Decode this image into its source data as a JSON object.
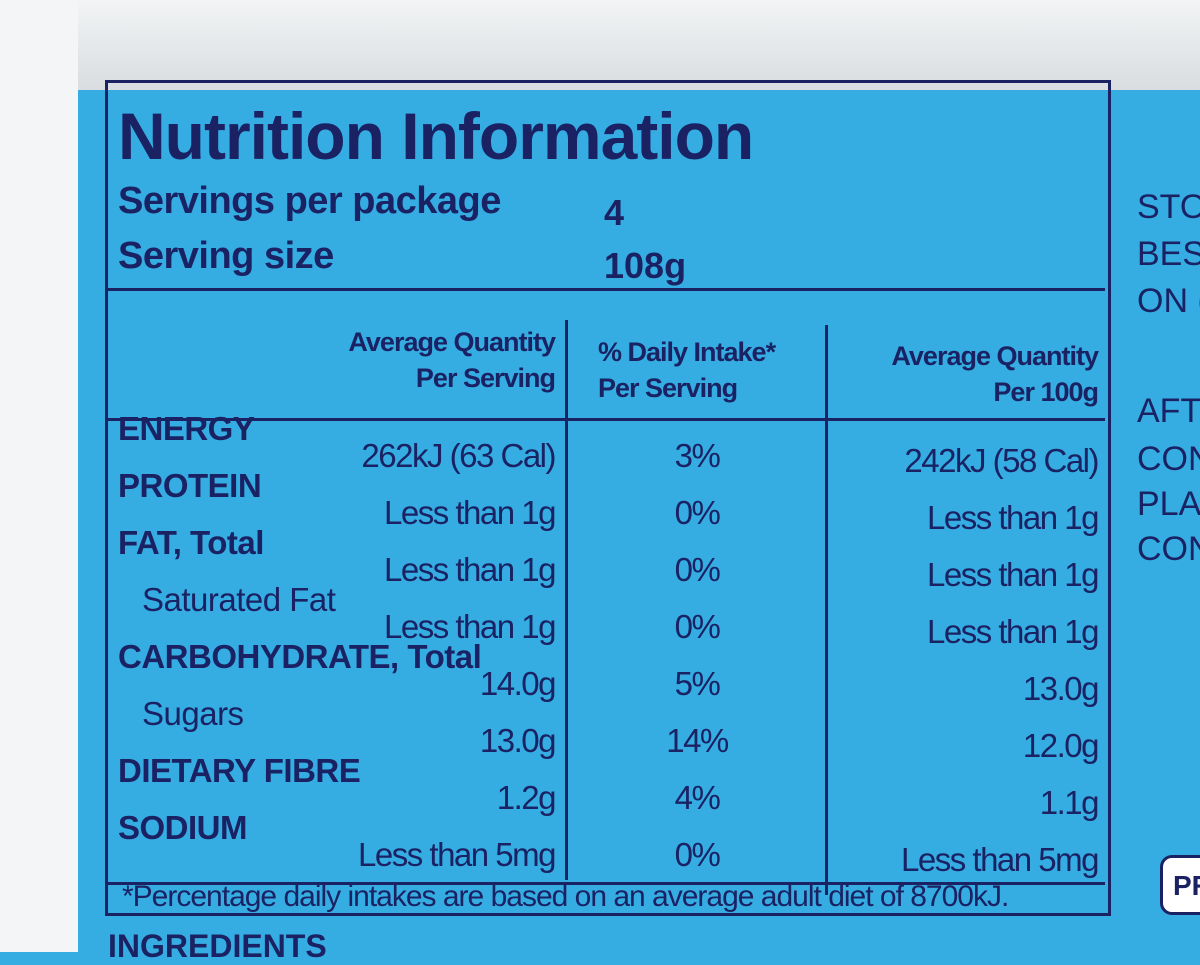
{
  "label": {
    "title": "Nutrition Information",
    "servings": [
      {
        "label": "Servings per package",
        "value": "4"
      },
      {
        "label": "Serving size",
        "value": "108g"
      }
    ],
    "table": {
      "headers": [
        [
          "Average Quantity",
          "Per Serving"
        ],
        [
          "% Daily Intake*",
          "Per Serving"
        ],
        [
          "Average Quantity",
          "Per 100g"
        ]
      ],
      "rows": [
        {
          "name": "ENERGY",
          "sub": false,
          "cells": [
            "262kJ (63 Cal)",
            "3%",
            "242kJ (58 Cal)"
          ]
        },
        {
          "name": "PROTEIN",
          "sub": false,
          "cells": [
            "Less than 1g",
            "0%",
            "Less than 1g"
          ]
        },
        {
          "name": "FAT, Total",
          "sub": false,
          "cells": [
            "Less than 1g",
            "0%",
            "Less than 1g"
          ]
        },
        {
          "name": "Saturated Fat",
          "sub": true,
          "cells": [
            "Less than 1g",
            "0%",
            "Less than 1g"
          ]
        },
        {
          "name": "CARBOHYDRATE, Total",
          "sub": false,
          "cells": [
            "14.0g",
            "5%",
            "13.0g"
          ]
        },
        {
          "name": "Sugars",
          "sub": true,
          "cells": [
            "13.0g",
            "14%",
            "12.0g"
          ]
        },
        {
          "name": "DIETARY FIBRE",
          "sub": false,
          "cells": [
            "1.2g",
            "4%",
            "1.1g"
          ]
        },
        {
          "name": "SODIUM",
          "sub": false,
          "cells": [
            "Less than 5mg",
            "0%",
            "Less than 5mg"
          ]
        }
      ]
    },
    "footnote": "*Percentage daily intakes are based on an average adult diet of 8700kJ.",
    "ingredients_heading": "INGREDIENTS"
  },
  "side_text": [
    "STO",
    "BES",
    "ON (",
    "AFT",
    "CON",
    "PLA",
    "CON"
  ],
  "badge": "PR"
}
